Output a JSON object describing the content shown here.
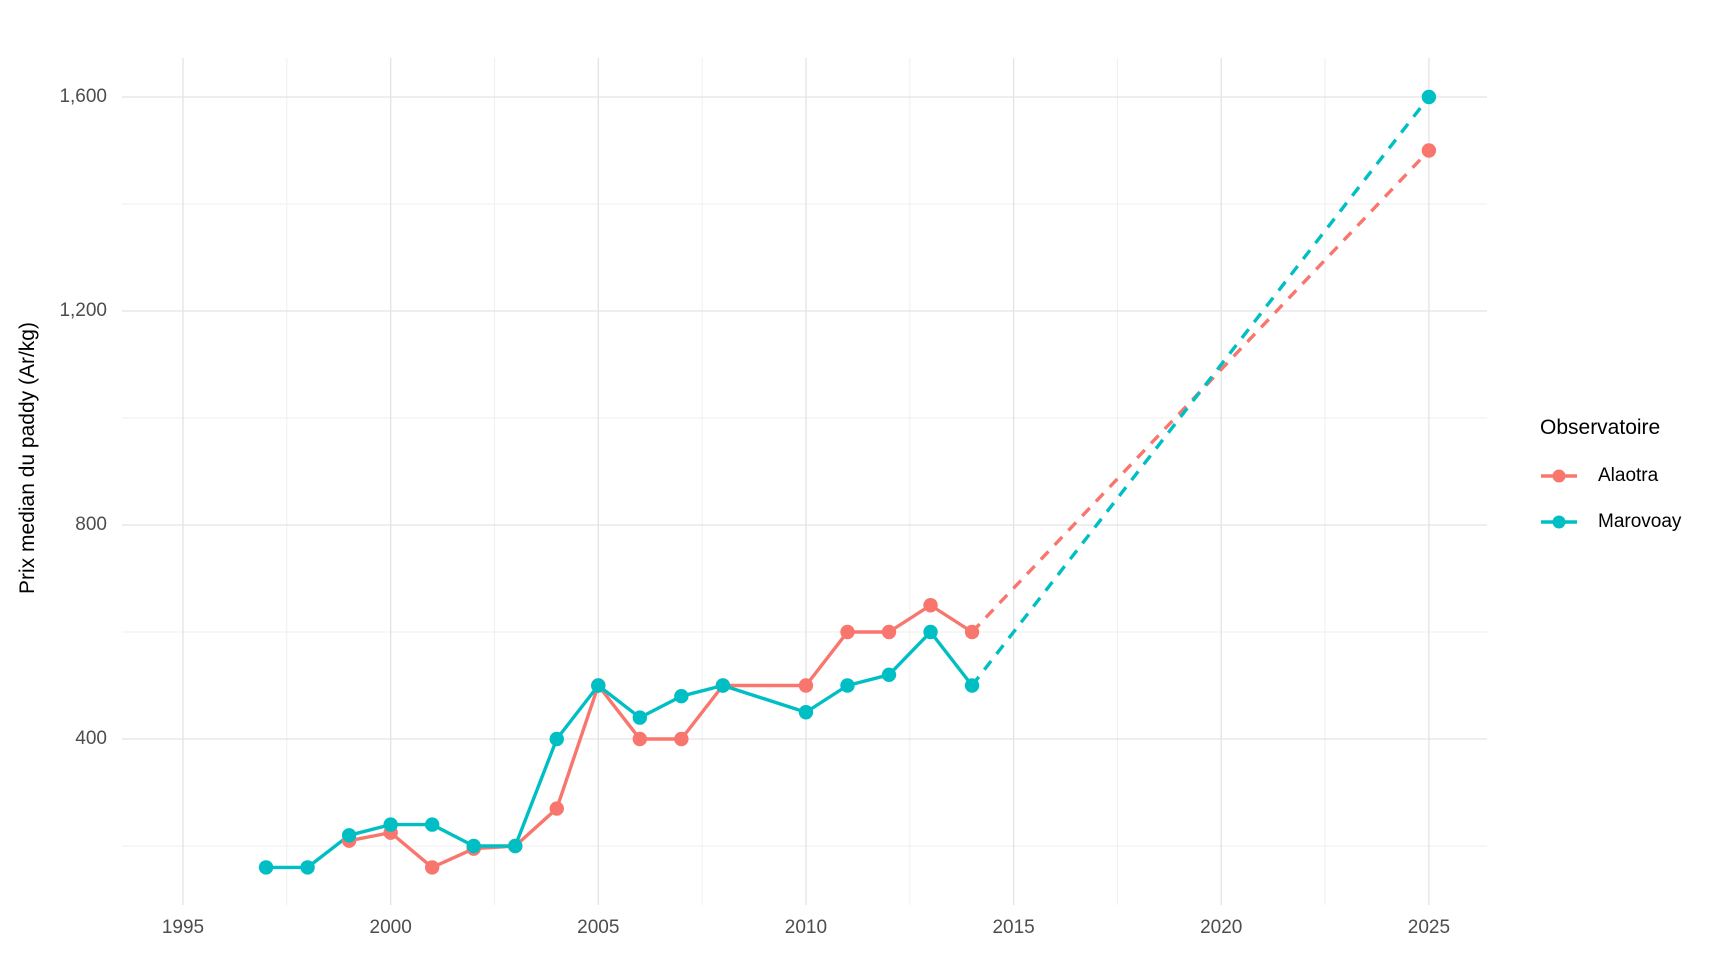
{
  "chart_data": {
    "type": "line",
    "title": "",
    "xlabel": "",
    "ylabel": "Prix median du paddy (Ar/kg)",
    "legend_title": "Observatoire",
    "legend_position": "right",
    "grid": true,
    "background": "#ffffff",
    "x_ticks": [
      1995,
      2000,
      2005,
      2010,
      2015,
      2020,
      2025
    ],
    "x_tick_labels": [
      "1995",
      "2000",
      "2005",
      "2010",
      "2015",
      "2020",
      "2025"
    ],
    "x_minor_ticks": [
      1997.5,
      2002.5,
      2007.5,
      2012.5,
      2017.5,
      2022.5
    ],
    "y_ticks": [
      400,
      800,
      1200,
      1600
    ],
    "y_tick_labels": [
      "400",
      "800",
      "1,200",
      "1,600"
    ],
    "y_minor_ticks": [
      200,
      600,
      1000,
      1400
    ],
    "xlim": [
      1993.3,
      2026.4
    ],
    "ylim": [
      90,
      1673
    ],
    "series": [
      {
        "name": "Alaotra",
        "color": "#F8766D",
        "observed": {
          "linetype": "solid",
          "x": [
            1999,
            2000,
            2001,
            2002,
            2003,
            2004,
            2005,
            2006,
            2007,
            2008,
            2010,
            2011,
            2012,
            2013,
            2014
          ],
          "y": [
            210,
            225,
            160,
            195,
            200,
            270,
            500,
            400,
            400,
            500,
            500,
            600,
            600,
            650,
            600
          ]
        },
        "projection": {
          "linetype": "dashed",
          "x": [
            2014,
            2025
          ],
          "y": [
            600,
            1500
          ]
        }
      },
      {
        "name": "Marovoay",
        "color": "#00BFC4",
        "observed": {
          "linetype": "solid",
          "x": [
            1997,
            1998,
            1999,
            2000,
            2001,
            2002,
            2003,
            2004,
            2005,
            2006,
            2007,
            2008,
            2010,
            2011,
            2012,
            2013,
            2014
          ],
          "y": [
            160,
            160,
            220,
            240,
            240,
            200,
            200,
            400,
            500,
            440,
            480,
            500,
            450,
            500,
            520,
            600,
            500
          ]
        },
        "projection": {
          "linetype": "dashed",
          "x": [
            2014,
            2025
          ],
          "y": [
            500,
            1600
          ]
        }
      }
    ]
  }
}
